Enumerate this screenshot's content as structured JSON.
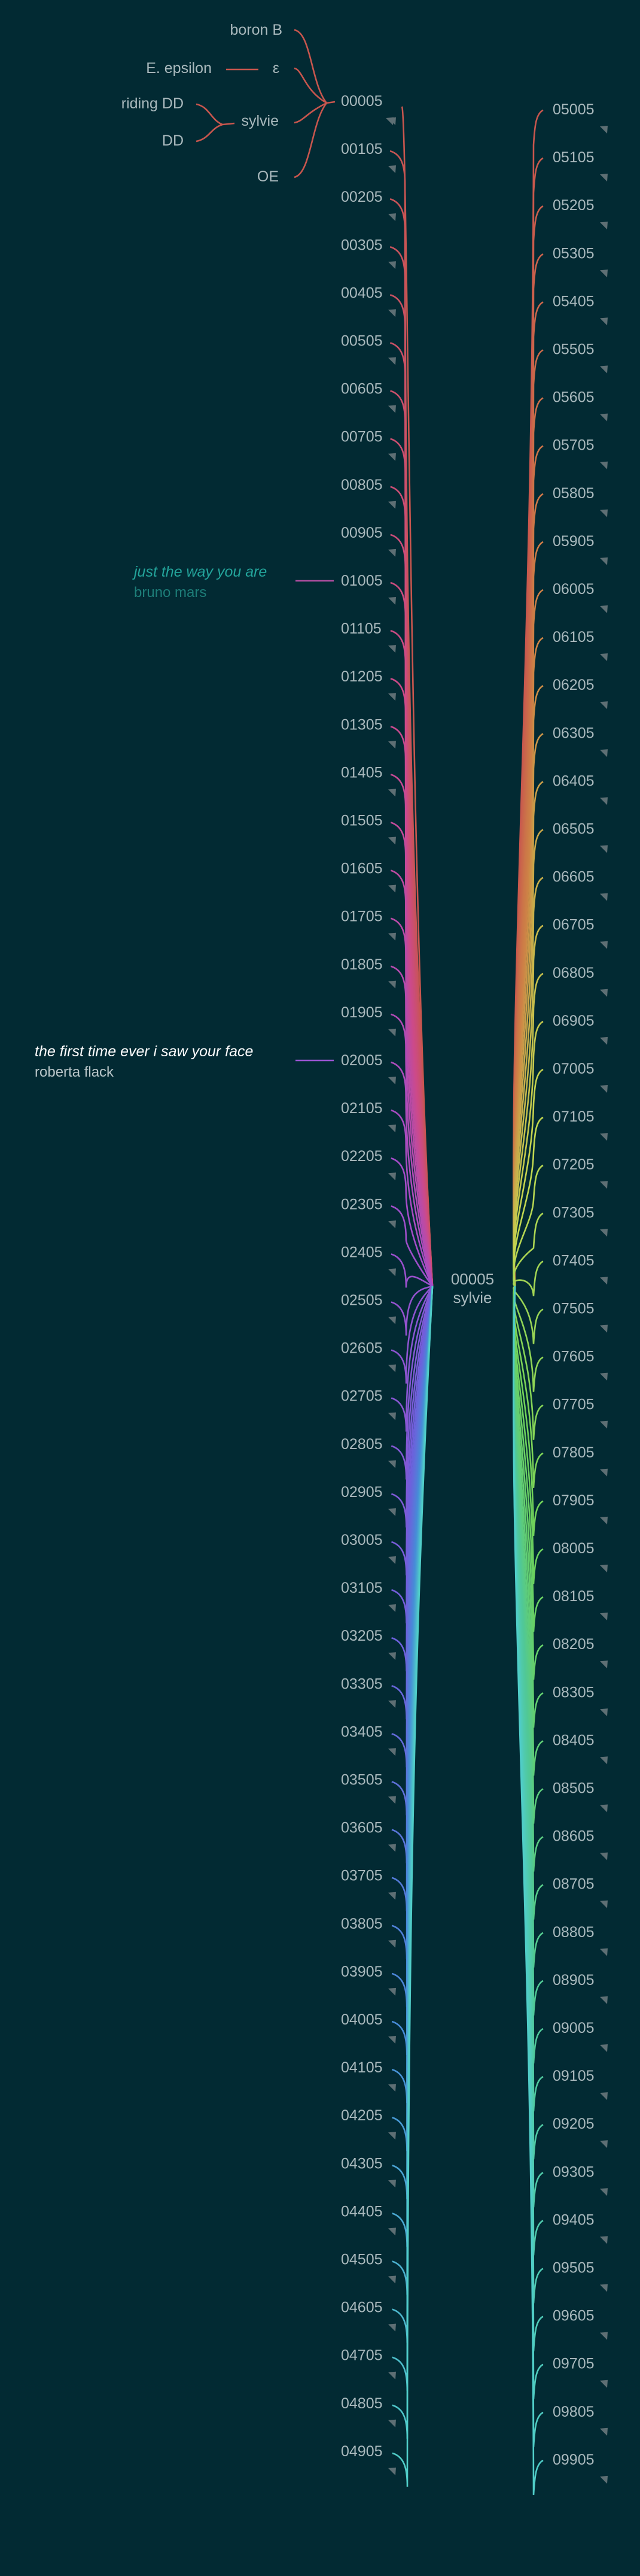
{
  "colors": {
    "background": "#022a33",
    "label": "#a9b9bd",
    "arrow": "#5e6f74",
    "red": "#c8564e"
  },
  "hub": {
    "id": "00005",
    "name": "sylvie"
  },
  "top_cluster": {
    "target": "00005",
    "items": [
      "boron B",
      "E. epsilon",
      "ε",
      "riding DD",
      "DD",
      "sylvie",
      "OE"
    ]
  },
  "annotations": [
    {
      "node": "01005",
      "song": "just the way you are",
      "artist": "bruno mars",
      "song_color": "#23a49b",
      "artist_color": "#1d7d78",
      "line_color": "#b04ea0"
    },
    {
      "node": "02005",
      "song": "the first time ever i saw your face",
      "artist": "roberta flack",
      "song_color": "#ffffff",
      "artist_color": "#b9c6c9",
      "line_color": "#9a55d2"
    }
  ],
  "left_nodes": [
    "00005",
    "00105",
    "00205",
    "00305",
    "00405",
    "00505",
    "00605",
    "00705",
    "00805",
    "00905",
    "01005",
    "01105",
    "01205",
    "01305",
    "01405",
    "01505",
    "01605",
    "01705",
    "01805",
    "01905",
    "02005",
    "02105",
    "02205",
    "02305",
    "02405",
    "02505",
    "02605",
    "02705",
    "02805",
    "02905",
    "03005",
    "03105",
    "03205",
    "03305",
    "03405",
    "03505",
    "03605",
    "03705",
    "03805",
    "03905",
    "04005",
    "04105",
    "04205",
    "04305",
    "04405",
    "04505",
    "04605",
    "04705",
    "04805",
    "04905"
  ],
  "right_nodes": [
    "05005",
    "05105",
    "05205",
    "05305",
    "05405",
    "05505",
    "05605",
    "05705",
    "05805",
    "05905",
    "06005",
    "06105",
    "06205",
    "06305",
    "06405",
    "06505",
    "06605",
    "06705",
    "06805",
    "06905",
    "07005",
    "07105",
    "07205",
    "07305",
    "07405",
    "07505",
    "07605",
    "07705",
    "07805",
    "07905",
    "08005",
    "08105",
    "08205",
    "08305",
    "08405",
    "08505",
    "08605",
    "08705",
    "08805",
    "08905",
    "09005",
    "09105",
    "09205",
    "09305",
    "09405",
    "09505",
    "09605",
    "09705",
    "09805",
    "09905"
  ]
}
